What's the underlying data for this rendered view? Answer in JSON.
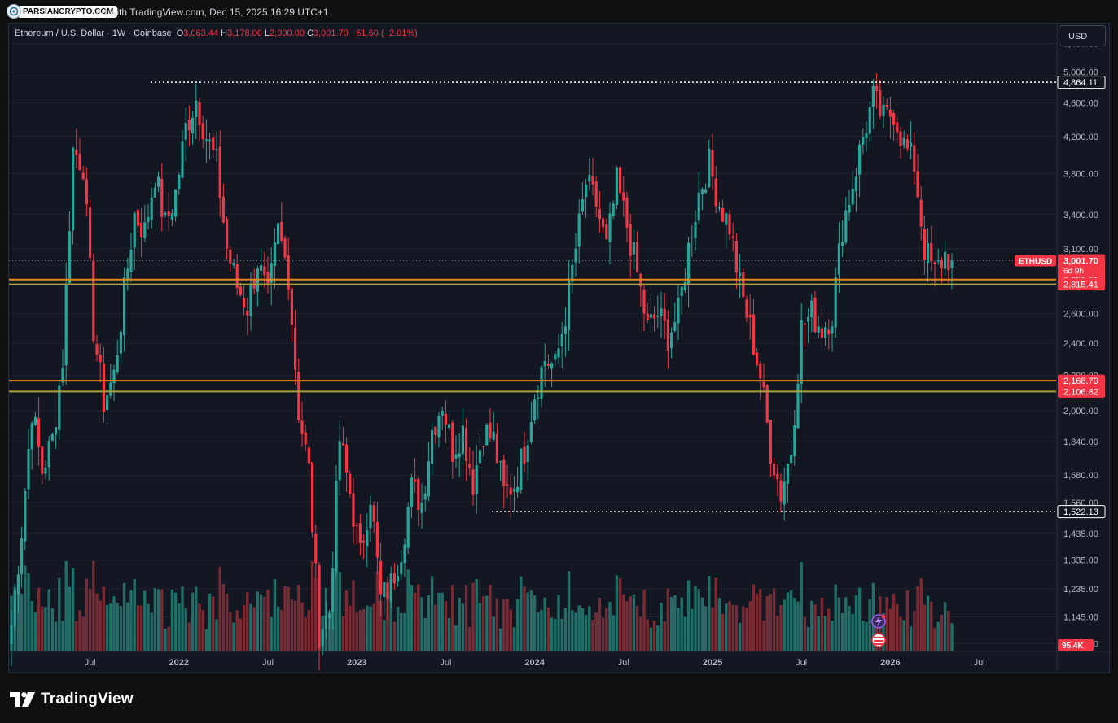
{
  "header": {
    "watermark_label": "PARSIANCRYPTO.COM",
    "published_text": "ed with TradingView.com, Dec 15, 2025 16:29 UTC+1"
  },
  "legend": {
    "symbol": "Ethereum / U.S. Dollar · 1W · Coinbase",
    "o_label": "O",
    "o_value": "3,063.44",
    "h_label": "H",
    "h_value": "3,178.00",
    "l_label": "L",
    "l_value": "2,990.00",
    "c_label": "C",
    "c_value": "3,001.70",
    "change": "−61.60 (−2.01%)"
  },
  "currency_button": "USD",
  "branding": "TradingView",
  "colors": {
    "up": "#26a69a",
    "down": "#f23645",
    "bg": "#131722",
    "orange_line": "#e8851a",
    "olive_line": "#a8a038",
    "grid": "#1e222d"
  },
  "chart_data": {
    "type": "candlestick",
    "title": "Ethereum / U.S. Dollar · 1W · Coinbase",
    "scale": "log",
    "ylim": [
      1045,
      5700
    ],
    "y_ticks": [
      "5,400.00",
      "5,000.00",
      "4,600.00",
      "4,200.00",
      "3,800.00",
      "3,400.00",
      "3,100.00",
      "2,600.00",
      "2,400.00",
      "2,200.00",
      "2,000.00",
      "1,840.00",
      "1,680.00",
      "1,560.00",
      "1,435.00",
      "1,335.00",
      "1,235.00",
      "1,145.00",
      "1,065.00"
    ],
    "x_ticks": [
      "Jul",
      "2022",
      "Jul",
      "2023",
      "Jul",
      "2024",
      "Jul",
      "2025",
      "Jul",
      "2026",
      "Jul"
    ],
    "horizontal_levels": [
      {
        "price": 4864.11,
        "label": "4,864.11",
        "style": "dotted",
        "color": "#ffffff"
      },
      {
        "price": 2851.51,
        "label": "2,851.51",
        "style": "solid",
        "color": "#e8851a"
      },
      {
        "price": 2815.41,
        "label": "2,815.41",
        "style": "solid",
        "color": "#a8a038"
      },
      {
        "price": 2168.79,
        "label": "2,168.79",
        "style": "solid",
        "color": "#e8851a"
      },
      {
        "price": 2106.82,
        "label": "2,106.82",
        "style": "solid",
        "color": "#a8a038"
      },
      {
        "price": 1522.13,
        "label": "1,522.13",
        "style": "dotted",
        "color": "#ffffff"
      }
    ],
    "last_price": {
      "symbol": "ETHUSD",
      "price": 3001.7,
      "label": "3,001.70",
      "countdown": "6d 9h"
    },
    "volume_label": "95.4K",
    "anchors": [
      [
        0,
        1120
      ],
      [
        3,
        1450
      ],
      [
        6,
        2010
      ],
      [
        9,
        1700
      ],
      [
        12,
        1850
      ],
      [
        15,
        2300
      ],
      [
        18,
        4050
      ],
      [
        21,
        3900
      ],
      [
        24,
        2500
      ],
      [
        27,
        2050
      ],
      [
        30,
        2200
      ],
      [
        33,
        2750
      ],
      [
        36,
        3400
      ],
      [
        39,
        3250
      ],
      [
        42,
        3800
      ],
      [
        45,
        3300
      ],
      [
        48,
        3600
      ],
      [
        51,
        4300
      ],
      [
        54,
        4650
      ],
      [
        57,
        4200
      ],
      [
        60,
        3900
      ],
      [
        63,
        3100
      ],
      [
        66,
        2800
      ],
      [
        69,
        2650
      ],
      [
        72,
        3000
      ],
      [
        75,
        2700
      ],
      [
        78,
        3250
      ],
      [
        81,
        2900
      ],
      [
        84,
        2000
      ],
      [
        87,
        1700
      ],
      [
        90,
        1100
      ],
      [
        93,
        1160
      ],
      [
        96,
        1850
      ],
      [
        99,
        1600
      ],
      [
        102,
        1350
      ],
      [
        105,
        1600
      ],
      [
        108,
        1200
      ],
      [
        111,
        1250
      ],
      [
        114,
        1380
      ],
      [
        117,
        1620
      ],
      [
        120,
        1560
      ],
      [
        123,
        1900
      ],
      [
        126,
        2050
      ],
      [
        129,
        1800
      ],
      [
        132,
        1900
      ],
      [
        135,
        1650
      ],
      [
        138,
        1900
      ],
      [
        141,
        1850
      ],
      [
        144,
        1600
      ],
      [
        147,
        1640
      ],
      [
        150,
        1800
      ],
      [
        153,
        2100
      ],
      [
        156,
        2300
      ],
      [
        159,
        2250
      ],
      [
        162,
        2600
      ],
      [
        165,
        3100
      ],
      [
        168,
        3700
      ],
      [
        171,
        3500
      ],
      [
        174,
        3100
      ],
      [
        177,
        3700
      ],
      [
        180,
        3300
      ],
      [
        183,
        2900
      ],
      [
        186,
        2500
      ],
      [
        189,
        2600
      ],
      [
        192,
        2450
      ],
      [
        195,
        2600
      ],
      [
        198,
        3100
      ],
      [
        201,
        3600
      ],
      [
        204,
        3900
      ],
      [
        207,
        3500
      ],
      [
        210,
        3300
      ],
      [
        213,
        2800
      ],
      [
        216,
        2500
      ],
      [
        219,
        2200
      ],
      [
        222,
        1800
      ],
      [
        225,
        1600
      ],
      [
        228,
        1800
      ],
      [
        231,
        2500
      ],
      [
        234,
        2600
      ],
      [
        237,
        2500
      ],
      [
        240,
        2600
      ],
      [
        243,
        3300
      ],
      [
        246,
        3700
      ],
      [
        249,
        4200
      ],
      [
        252,
        4650
      ],
      [
        255,
        4400
      ],
      [
        258,
        4500
      ],
      [
        261,
        4100
      ],
      [
        264,
        3900
      ],
      [
        267,
        3100
      ],
      [
        270,
        2900
      ],
      [
        273,
        3050
      ],
      [
        275,
        3001.7
      ]
    ]
  }
}
